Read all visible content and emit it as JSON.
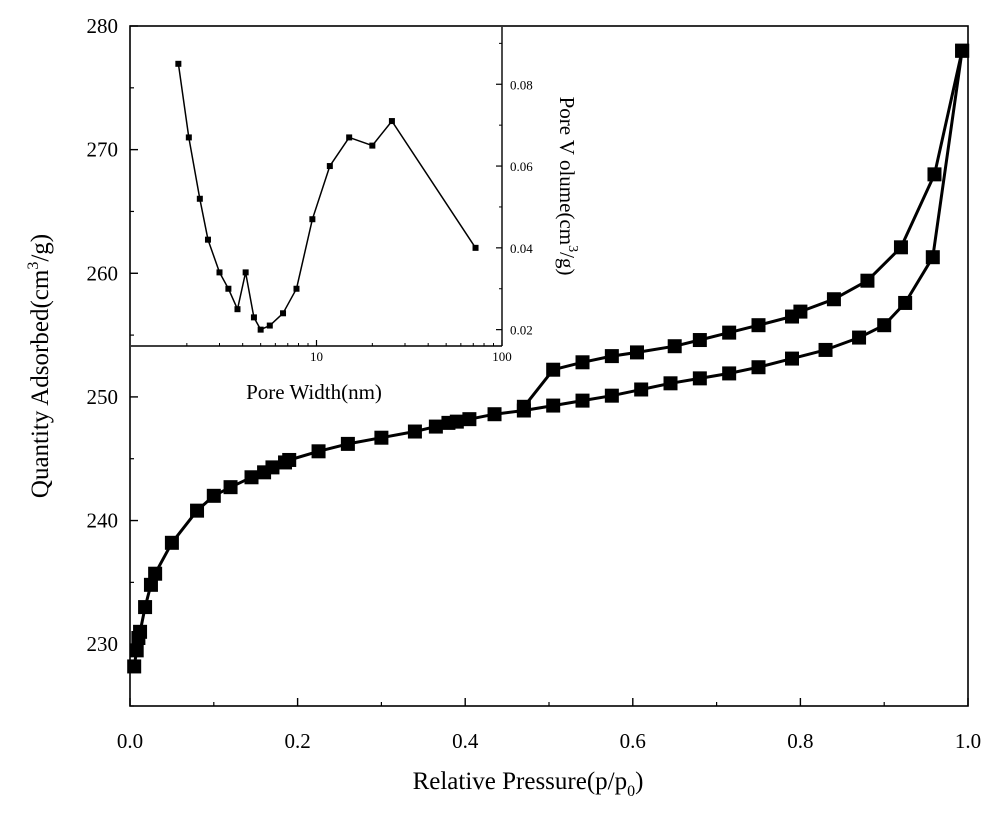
{
  "chart_data": [
    {
      "name": "main",
      "type": "line",
      "xlabel": "Relative Pressure(p/p",
      "xlabel_sub": "0",
      "xlabel_close": ")",
      "ylabel": "Quantity Adsorbed(cm",
      "ylabel_sup": "3",
      "ylabel_close": "/g)",
      "xlim": [
        0.0,
        1.0
      ],
      "ylim": [
        225,
        280
      ],
      "xticks": [
        0.0,
        0.2,
        0.4,
        0.6,
        0.8,
        1.0
      ],
      "xtick_labels": [
        "0.0",
        "0.2",
        "0.4",
        "0.6",
        "0.8",
        "1.0"
      ],
      "yticks": [
        230,
        240,
        250,
        260,
        270,
        280
      ],
      "ytick_labels": [
        "230",
        "240",
        "250",
        "260",
        "270",
        "280"
      ],
      "series": [
        {
          "name": "adsorption",
          "marker": "square",
          "x": [
            0.005,
            0.008,
            0.01,
            0.012,
            0.018,
            0.025,
            0.03,
            0.05,
            0.08,
            0.1,
            0.12,
            0.145,
            0.16,
            0.17,
            0.185,
            0.19,
            0.225,
            0.26,
            0.3,
            0.34,
            0.365,
            0.38,
            0.39,
            0.405,
            0.435,
            0.47,
            0.505,
            0.54,
            0.575,
            0.61,
            0.645,
            0.68,
            0.715,
            0.75,
            0.79,
            0.83,
            0.87,
            0.9,
            0.925,
            0.958,
            0.993
          ],
          "y": [
            228.2,
            229.5,
            230.5,
            231.0,
            233.0,
            234.8,
            235.7,
            238.2,
            240.8,
            242.0,
            242.7,
            243.5,
            243.9,
            244.3,
            244.7,
            244.9,
            245.6,
            246.2,
            246.7,
            247.2,
            247.6,
            247.9,
            248.0,
            248.2,
            248.6,
            248.9,
            249.3,
            249.7,
            250.1,
            250.6,
            251.1,
            251.5,
            251.9,
            252.4,
            253.1,
            253.8,
            254.8,
            255.8,
            257.6,
            261.3,
            278.0
          ]
        },
        {
          "name": "desorption",
          "marker": "square",
          "x": [
            0.993,
            0.96,
            0.92,
            0.88,
            0.84,
            0.8,
            0.79,
            0.75,
            0.715,
            0.68,
            0.65,
            0.605,
            0.575,
            0.54,
            0.505,
            0.47
          ],
          "y": [
            278.0,
            268.0,
            262.1,
            259.4,
            257.9,
            256.9,
            256.5,
            255.8,
            255.2,
            254.6,
            254.1,
            253.6,
            253.3,
            252.8,
            252.2,
            249.2
          ]
        }
      ]
    },
    {
      "name": "inset",
      "type": "line",
      "xscale": "log",
      "xlabel": "Pore Width(nm)",
      "ylabel": "Pore V olume(cm",
      "ylabel_sup": "3",
      "ylabel_close": "/g)",
      "xlim": [
        1,
        100
      ],
      "ylim": [
        0.016,
        0.094
      ],
      "xticks": [
        10,
        100
      ],
      "xtick_labels": [
        "10",
        "100"
      ],
      "yticks": [
        0.02,
        0.04,
        0.06,
        0.08
      ],
      "ytick_labels": [
        "0.02",
        "0.04",
        "0.06",
        "0.08"
      ],
      "series": [
        {
          "name": "pore size distribution",
          "marker": "square",
          "x": [
            1.8,
            2.05,
            2.35,
            2.6,
            3.0,
            3.35,
            3.75,
            4.15,
            4.6,
            5.0,
            5.6,
            6.6,
            7.8,
            9.5,
            11.8,
            15.0,
            20.0,
            25.5,
            72.0
          ],
          "y": [
            0.085,
            0.067,
            0.052,
            0.042,
            0.034,
            0.03,
            0.025,
            0.034,
            0.023,
            0.02,
            0.021,
            0.024,
            0.03,
            0.047,
            0.06,
            0.067,
            0.065,
            0.071,
            0.04
          ]
        }
      ]
    }
  ]
}
